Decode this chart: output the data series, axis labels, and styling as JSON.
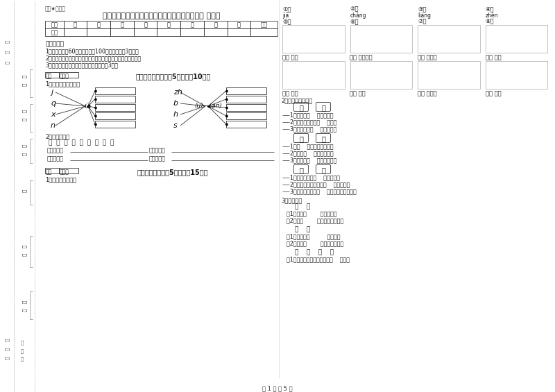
{
  "bg_color": "#ffffff",
  "title": "攀枝花市实验小学一年级语文上学期每周一练试题 附答案",
  "subtitle": "题典★自用题",
  "table_headers": [
    "题号",
    "一",
    "二",
    "三",
    "四",
    "五",
    "六",
    "七",
    "八",
    "总分"
  ],
  "table_row": [
    "得分",
    "",
    "",
    "",
    "",
    "",
    "",
    "",
    "",
    ""
  ],
  "notes_title": "考试须知：",
  "notes": [
    "1．考试时间：60分钟，满分为100分（含卷面分3分）。",
    "2．请首先按要求在试卷的指定位置填写您的姓名、班级、学号。",
    "3．不要在试卷上乱写乱画，卷面不整洁扣3分。"
  ],
  "section1_title": "一、拼音部分（每题5分，共计10分）",
  "pinyin_q1": "1．我会拼，我会写。",
  "pinyin_left": [
    "j",
    "q",
    "x",
    "n"
  ],
  "pinyin_center": "ü",
  "pinyin_right_labels": [
    "zh",
    "b",
    "h",
    "s"
  ],
  "pinyin_center2": "(u)－（an）",
  "pinyin_q2": "2．我会分类。",
  "pinyin_chars": "山  看  声  拾  色  四  青  方  玩",
  "classify_rows": [
    [
      "平舌音字：",
      "翘舌音字："
    ],
    [
      "前鼻音字：",
      "后鼻音字："
    ]
  ],
  "section2_title": "二、填空题（每题5分，共计15分）",
  "fill_q1": "1．看图选字填空。",
  "right_nums_row1": [
    "①个",
    "②只",
    "③朵",
    "④头"
  ],
  "right_nums_row2_pinyin": [
    "jiā",
    "chǎng",
    "liàng",
    "zhèn"
  ],
  "right_nums_row2": [
    "⑤架",
    "⑥场",
    "⑦辆",
    "⑧阵"
  ],
  "pic_labels_row1": [
    "一（ ）花",
    "一（ ）自行车",
    "一（ ）雪人",
    "一（ ）风"
  ],
  "pic_labels_row2": [
    "一（ ）兔",
    "一（ ）雨",
    "一（ ）飞机",
    "一（ ）牛"
  ],
  "q2_title": "2．我会选字填空。",
  "word_groups": [
    {
      "words": [
        "近",
        "进"
      ],
      "sentences": [
        "1．阳光照（    ）了教室。",
        "2．现在离春节很（    ）了。",
        "3．你怎么不（    ）门的呢？"
      ]
    },
    {
      "words": [
        "三",
        "山"
      ],
      "sentences": [
        "1．（    ）上开满了鲜花。",
        "2．我有（    ）个好朋友。",
        "3．草地上（    ）羊在吃草。"
      ]
    },
    {
      "words": [
        "在",
        "再"
      ],
      "sentences": [
        "1．小熊一家住（    ）山洞里。",
        "2．老师让小明把古诗（    ）读一遍。",
        "3．老师告诉我们（    ）家要走注意安全。"
      ]
    }
  ],
  "q3_title": "3．我会选。",
  "q3_groups": [
    {
      "words": [
        "在",
        "再"
      ],
      "sentences": [
        "（1）小鸟（        ）天上飞。",
        "（2）我（        ）次来到公园里。"
      ]
    },
    {
      "words": [
        "那",
        "哪"
      ],
      "sentences": [
        "（1）你要到（          ）儿去？",
        "（2）小河（        ）边是我的家。"
      ]
    },
    {
      "words": [
        "相",
        "想",
        "像",
        "象"
      ],
      "sentences": [
        "（1）妈妈给我和小狗拍了张（    ）片。"
      ]
    }
  ],
  "page_footer": "第 1 页 共 5 页"
}
